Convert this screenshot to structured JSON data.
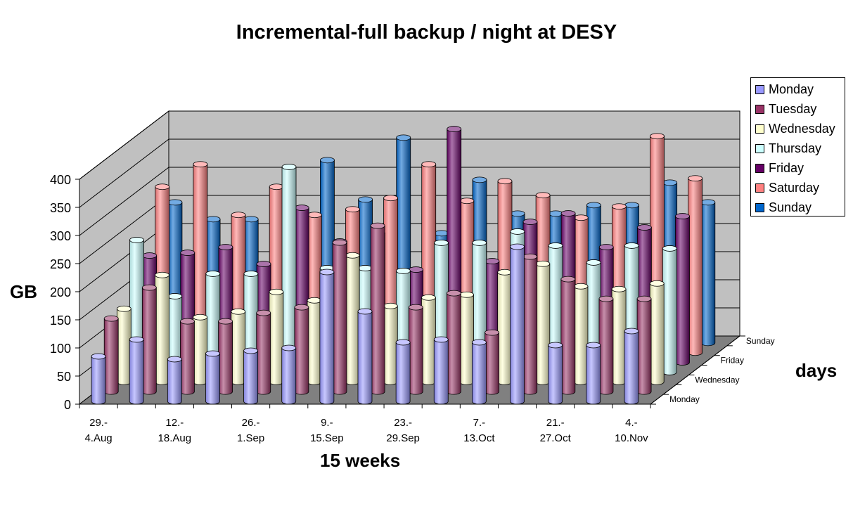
{
  "chart_data": {
    "type": "bar",
    "subtype": "3d-cylinder",
    "title": "Incremental-full backup / night at DESY",
    "ylabel": "GB",
    "xlabel": "15 weeks",
    "zlabel": "days",
    "ylim": [
      0,
      400
    ],
    "yticks": [
      "0",
      "50",
      "100",
      "150",
      "200",
      "250",
      "300",
      "350",
      "400"
    ],
    "x_tick_labels": [
      [
        "29.-",
        "4.Aug"
      ],
      [
        "12.-",
        "18.Aug"
      ],
      [
        "26.-",
        "1.Sep"
      ],
      [
        "9.-",
        "15.Sep"
      ],
      [
        "23.-",
        "29.Sep"
      ],
      [
        "7.-",
        "13.Oct"
      ],
      [
        "21.-",
        "27.Oct"
      ],
      [
        "4.-",
        "10.Nov"
      ]
    ],
    "z_tick_labels": [
      "Monday",
      "Wednesday",
      "Friday",
      "Sunday"
    ],
    "weeks": 15,
    "legend_position": "top-right",
    "grid": true,
    "series": [
      {
        "name": "Monday",
        "color": "#9999ff",
        "values": [
          80,
          110,
          75,
          85,
          90,
          95,
          230,
          160,
          105,
          110,
          105,
          275,
          100,
          100,
          125
        ]
      },
      {
        "name": "Tuesday",
        "color": "#993366",
        "values": [
          130,
          185,
          125,
          125,
          140,
          150,
          265,
          295,
          150,
          175,
          105,
          240,
          200,
          165,
          165
        ]
      },
      {
        "name": "Wednesday",
        "color": "#ffffcc",
        "values": [
          130,
          190,
          115,
          125,
          160,
          145,
          225,
          135,
          150,
          155,
          195,
          210,
          170,
          165,
          175
        ]
      },
      {
        "name": "Thursday",
        "color": "#ccffff",
        "values": [
          235,
          135,
          175,
          175,
          365,
          185,
          185,
          180,
          230,
          230,
          250,
          225,
          195,
          225,
          220
        ]
      },
      {
        "name": "Friday",
        "color": "#660066",
        "values": [
          190,
          195,
          205,
          175,
          275,
          215,
          230,
          165,
          415,
          180,
          250,
          265,
          205,
          240,
          260
        ]
      },
      {
        "name": "Saturday",
        "color": "#ff8080",
        "values": [
          295,
          335,
          245,
          295,
          245,
          255,
          275,
          335,
          270,
          305,
          280,
          240,
          260,
          385,
          310
        ]
      },
      {
        "name": "Sunday",
        "color": "#0066cc",
        "values": [
          250,
          220,
          220,
          190,
          325,
          255,
          365,
          195,
          290,
          230,
          230,
          245,
          245,
          285,
          250
        ]
      }
    ]
  }
}
